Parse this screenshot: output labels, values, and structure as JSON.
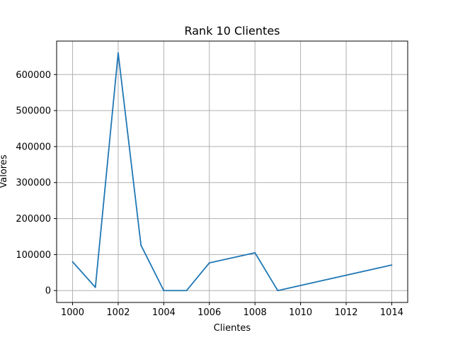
{
  "chart_data": {
    "type": "line",
    "title": "Rank 10 Clientes",
    "xlabel": "Clientes",
    "ylabel": "Valores",
    "xlim": [
      999.3,
      1014.7
    ],
    "ylim": [
      -33000,
      693000
    ],
    "xticks": [
      1000,
      1002,
      1004,
      1006,
      1008,
      1010,
      1012,
      1014
    ],
    "yticks": [
      0,
      100000,
      200000,
      300000,
      400000,
      500000,
      600000
    ],
    "grid": true,
    "series": [
      {
        "color": "#1f77b4",
        "x": [
          1000,
          1001,
          1002,
          1003,
          1004,
          1005,
          1006,
          1008,
          1009,
          1014
        ],
        "y": [
          80000,
          9000,
          660000,
          126000,
          0,
          0,
          77000,
          105000,
          0,
          71000
        ]
      }
    ]
  }
}
